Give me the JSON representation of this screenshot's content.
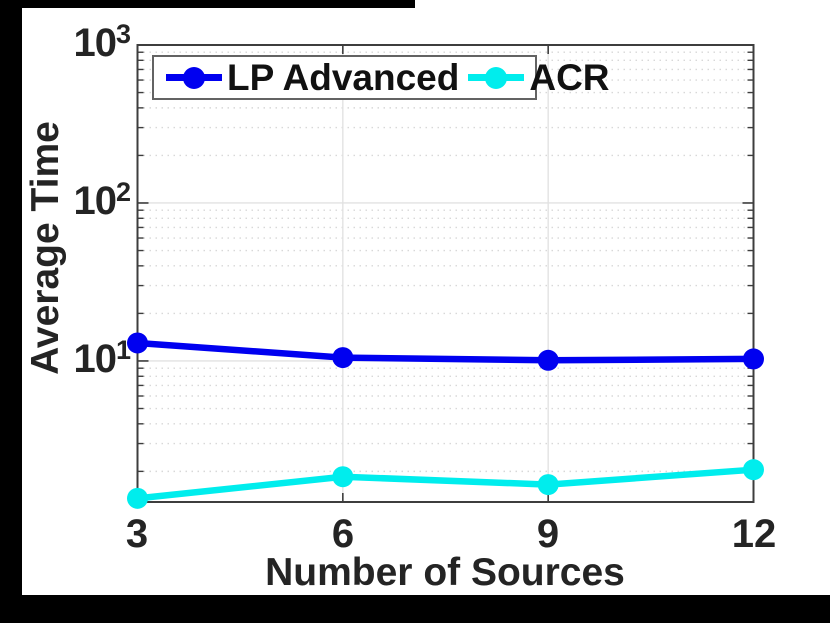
{
  "figure": {
    "background": "#ffffff",
    "frame_color": "#000000",
    "axis_color": "#3d3d3d",
    "text_color": "#242424",
    "grid_major_color": "#e2e2e2",
    "grid_minor_color": "#d8d8d8"
  },
  "chart_data": {
    "type": "line",
    "title": "",
    "xlabel": "Number of Sources",
    "ylabel": "Average Time",
    "x": [
      3,
      6,
      9,
      12
    ],
    "x_tick_labels": [
      "3",
      "6",
      "9",
      "12"
    ],
    "x_range": [
      3,
      12
    ],
    "y_scale": "log",
    "y_range": [
      1.28,
      1000
    ],
    "y_major_values": [
      10,
      100,
      1000
    ],
    "y_ticks": [
      {
        "base": "10",
        "exp": "1",
        "value": 10
      },
      {
        "base": "10",
        "exp": "2",
        "value": 100
      },
      {
        "base": "10",
        "exp": "3",
        "value": 1000
      }
    ],
    "grid": true,
    "minor_grid": true,
    "legend_position": "top-left-horizontal",
    "series": [
      {
        "name": "LP Advanced",
        "color": "#0000f0",
        "marker": "circle",
        "values": [
          13,
          10.5,
          10.1,
          10.3
        ]
      },
      {
        "name": "ACR",
        "color": "#00eded",
        "marker": "circle",
        "values": [
          1.35,
          1.85,
          1.65,
          2.05
        ]
      }
    ]
  }
}
